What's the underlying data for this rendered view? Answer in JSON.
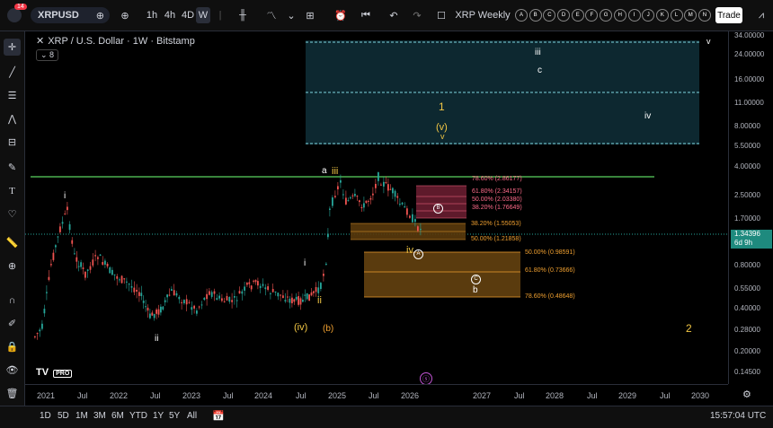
{
  "toolbar": {
    "notification_count": "14",
    "symbol": "XRPUSD",
    "intervals": [
      "1h",
      "4h",
      "4D",
      "W"
    ],
    "active_interval": "W",
    "layout_name": "XRP Weekly",
    "alert_letters": [
      "A",
      "B",
      "C",
      "D",
      "E",
      "F",
      "G",
      "H",
      "I",
      "J",
      "K",
      "L",
      "M",
      "N"
    ],
    "trade_label": "Trade"
  },
  "legend": {
    "title": "XRP / U.S. Dollar · 1W · Bitstamp",
    "indicator_count": "8"
  },
  "price_axis": {
    "ticks": [
      "34.00000",
      "24.00000",
      "16.00000",
      "11.00000",
      "8.00000",
      "5.50000",
      "4.00000",
      "2.50000",
      "1.70000",
      "0.80000",
      "0.55000",
      "0.40000",
      "0.28000",
      "0.20000",
      "0.14500"
    ],
    "current_price": "1.34396",
    "countdown": "6d 9h"
  },
  "time_axis": [
    "2021",
    "Jul",
    "2022",
    "Jul",
    "2023",
    "Jul",
    "2024",
    "Jul",
    "2025",
    "Jul",
    "2026",
    "2027",
    "Jul",
    "2028",
    "Jul",
    "2029",
    "Jul",
    "2030"
  ],
  "waves": {
    "i_top": "i",
    "ii": "ii",
    "i_mid": "i",
    "ii_mid": "ii",
    "iv_paren": "(iv)",
    "b_paren": "(b)",
    "a": "a",
    "iii": "iii",
    "iv_low": "iv",
    "A": "A",
    "B": "B",
    "C": "C",
    "b": "b",
    "one": "1",
    "v_paren": "(v)",
    "v_small": "v",
    "iii_top": "iii",
    "c_top": "c",
    "iv_right": "iv",
    "v_right": "v",
    "two": "2"
  },
  "fib_upper": [
    "78.60% (2.86177)",
    "61.80% (2.34157)",
    "50.00% (2.03380)",
    "38.20% (1.76649)"
  ],
  "fib_mid": [
    "38.20% (1.55053)",
    "50.00% (1.21858)"
  ],
  "fib_lower": [
    "50.00% (0.98591)",
    "61.80% (0.73666)",
    "78.60% (0.48648)"
  ],
  "bottombar": {
    "ranges": [
      "1D",
      "5D",
      "1M",
      "3M",
      "6M",
      "YTD",
      "1Y",
      "5Y",
      "All"
    ],
    "clock": "15:57:04 UTC"
  },
  "brand": "PRO",
  "colors": {
    "up": "#26a69a",
    "down": "#ef5350",
    "resistance": "#4caf50",
    "teal_box": "#0e2a30",
    "fib_pink": "#b33a52",
    "fib_orange": "#b5741a"
  }
}
